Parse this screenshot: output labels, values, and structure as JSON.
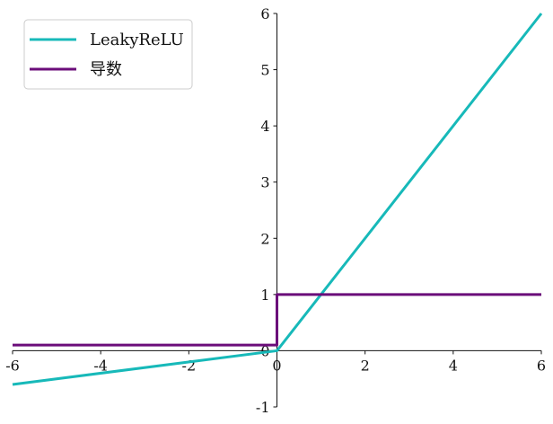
{
  "chart_data": {
    "type": "line",
    "title": "",
    "xlabel": "",
    "ylabel": "",
    "xlim": [
      -6,
      6
    ],
    "ylim": [
      -1,
      6
    ],
    "grid": false,
    "legend_position": "top-left",
    "x_ticks": [
      {
        "value": -6,
        "label": "-6"
      },
      {
        "value": -4,
        "label": "-4"
      },
      {
        "value": -2,
        "label": "-2"
      },
      {
        "value": 0,
        "label": "0"
      },
      {
        "value": 2,
        "label": "2"
      },
      {
        "value": 4,
        "label": "4"
      },
      {
        "value": 6,
        "label": "6"
      }
    ],
    "y_ticks": [
      {
        "value": -1,
        "label": "-1"
      },
      {
        "value": 0,
        "label": "0"
      },
      {
        "value": 1,
        "label": "1"
      },
      {
        "value": 2,
        "label": "2"
      },
      {
        "value": 3,
        "label": "3"
      },
      {
        "value": 4,
        "label": "4"
      },
      {
        "value": 5,
        "label": "5"
      },
      {
        "value": 6,
        "label": "6"
      }
    ],
    "series": [
      {
        "name": "LeakyReLU",
        "color": "#17b9b9",
        "x": [
          -6,
          0,
          6
        ],
        "y": [
          -0.6,
          0,
          6
        ]
      },
      {
        "name": "导数",
        "color": "#6b0d7a",
        "x": [
          -6,
          0,
          0,
          6
        ],
        "y": [
          0.1,
          0.1,
          1,
          1
        ]
      }
    ]
  }
}
